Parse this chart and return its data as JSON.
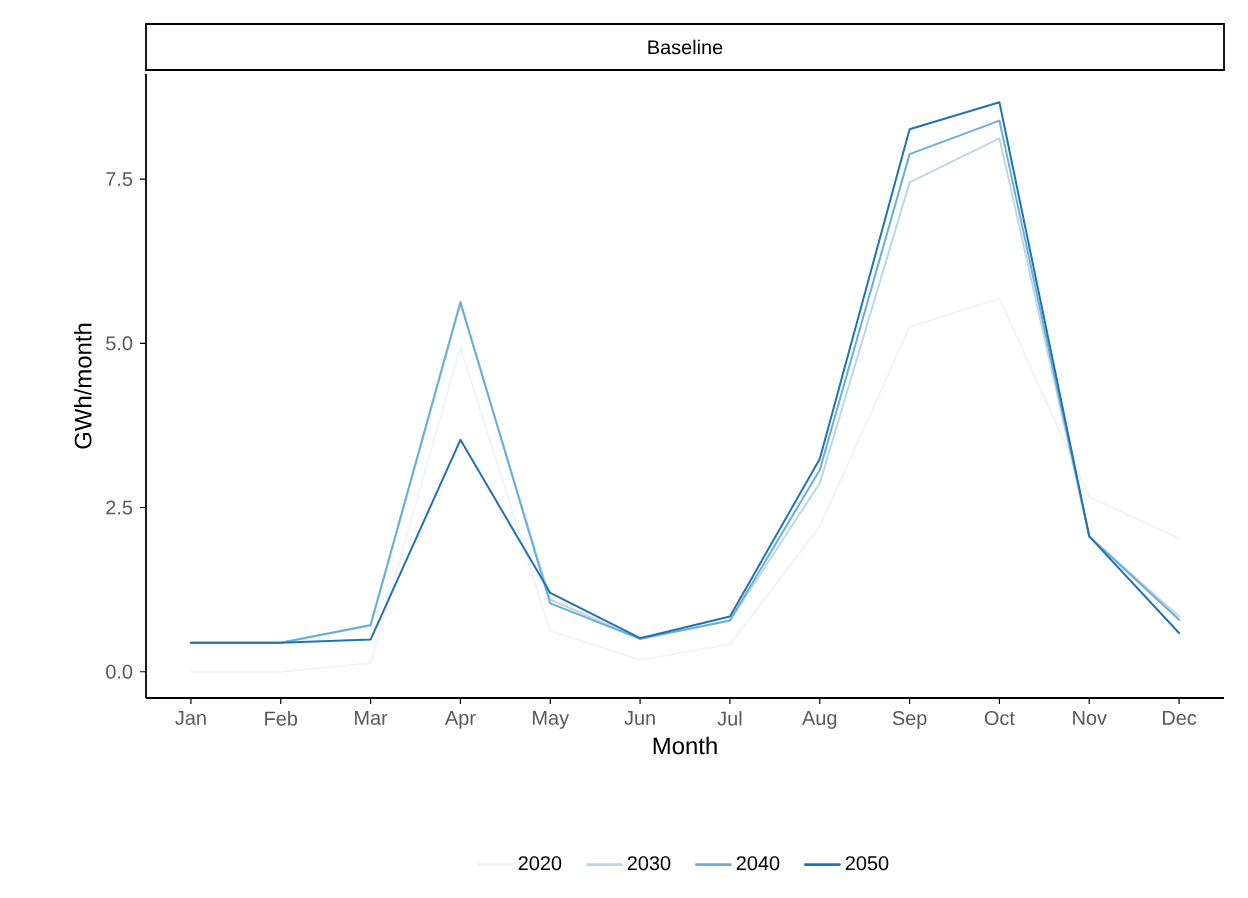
{
  "chart_data": {
    "type": "line",
    "title": "Baseline",
    "xlabel": "Month",
    "ylabel": "GWh/month",
    "categories": [
      "Jan",
      "Feb",
      "Mar",
      "Apr",
      "May",
      "Jun",
      "Jul",
      "Aug",
      "Sep",
      "Oct",
      "Nov",
      "Dec"
    ],
    "series": [
      {
        "name": "2020",
        "color": "#eff3ff",
        "values": [
          0.0,
          0.0,
          0.13,
          4.94,
          0.62,
          0.18,
          0.42,
          2.21,
          5.25,
          5.68,
          2.66,
          2.03
        ]
      },
      {
        "name": "2030",
        "color": "#bdd7e7",
        "values": [
          0.44,
          0.44,
          0.7,
          5.6,
          1.1,
          0.5,
          0.78,
          2.87,
          7.45,
          8.12,
          2.06,
          0.84
        ]
      },
      {
        "name": "2040",
        "color": "#6baed6",
        "values": [
          0.44,
          0.44,
          0.71,
          5.63,
          1.04,
          0.5,
          0.78,
          3.07,
          7.88,
          8.39,
          2.06,
          0.79
        ]
      },
      {
        "name": "2050",
        "color": "#2171b5",
        "values": [
          0.44,
          0.44,
          0.49,
          3.53,
          1.2,
          0.51,
          0.84,
          3.24,
          8.26,
          8.67,
          2.06,
          0.59
        ]
      }
    ],
    "ylim": [
      -0.4,
      9.1
    ],
    "yticks": [
      {
        "value": 0,
        "label": "0.0"
      },
      {
        "value": 2.5,
        "label": "2.5"
      },
      {
        "value": 5,
        "label": "5.0"
      },
      {
        "value": 7.5,
        "label": "7.5"
      }
    ],
    "grid": false,
    "legend": "bottom",
    "marker": "none",
    "line_style": "solid"
  }
}
